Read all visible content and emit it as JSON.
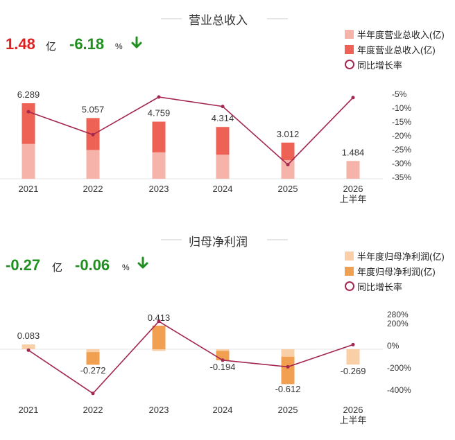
{
  "chart_data": [
    {
      "type": "bar",
      "title": "营业总收入",
      "kpi": {
        "value": "1.48",
        "unit": "亿",
        "change": "-6.18",
        "change_unit": "%"
      },
      "categories": [
        "2021",
        "2022",
        "2023",
        "2024",
        "2025",
        "2026\n上半年"
      ],
      "series": [
        {
          "name": "半年度营业总收入(亿)",
          "values": [
            2.9,
            2.4,
            2.2,
            2.0,
            1.55,
            1.484
          ],
          "color": "#f5b3aa"
        },
        {
          "name": "年度营业总收入(亿)",
          "values": [
            6.289,
            5.057,
            4.759,
            4.314,
            3.012,
            null
          ],
          "color": "#ee6155"
        },
        {
          "name": "同比增长率",
          "type": "line",
          "values": [
            -11.3,
            -19.6,
            -6.0,
            -9.4,
            -30.4,
            -6.2
          ],
          "color": "#a3274f"
        }
      ],
      "data_labels": [
        "6.289",
        "5.057",
        "4.759",
        "4.314",
        "3.012",
        "1.484"
      ],
      "y2_ticks": [
        "-5%",
        "-10%",
        "-15%",
        "-20%",
        "-25%",
        "-30%",
        "-35%"
      ],
      "y2lim": [
        -35,
        -5
      ]
    },
    {
      "type": "bar",
      "title": "归母净利润",
      "kpi": {
        "value": "-0.27",
        "unit": "亿",
        "change": "-0.06",
        "change_unit": "%"
      },
      "categories": [
        "2021",
        "2022",
        "2023",
        "2024",
        "2025",
        "2026\n上半年"
      ],
      "series": [
        {
          "name": "半年度归母净利润(亿)",
          "values": [
            0.083,
            -0.05,
            -0.03,
            -0.03,
            -0.13,
            -0.269
          ],
          "color": "#f8cfa6"
        },
        {
          "name": "年度归母净利润(亿)",
          "values": [
            0.083,
            -0.272,
            0.413,
            -0.194,
            -0.612,
            null
          ],
          "color": "#f0a050"
        },
        {
          "name": "同比增长率",
          "type": "line",
          "values": [
            -40,
            -430,
            220,
            -130,
            -190,
            10
          ],
          "color": "#a3274f"
        }
      ],
      "data_labels": [
        "0.083",
        "-0.272",
        "0.413",
        "-0.194",
        "-0.612",
        "-0.269"
      ],
      "y2_ticks": [
        "280%",
        "200%",
        "0%",
        "-200%",
        "-400%"
      ]
    }
  ],
  "colors": {
    "positive": "#e02020",
    "negative": "#1f8f1f",
    "arrow": "#1f8f1f",
    "line": "#a3274f",
    "title_rule": "#cccccc"
  }
}
